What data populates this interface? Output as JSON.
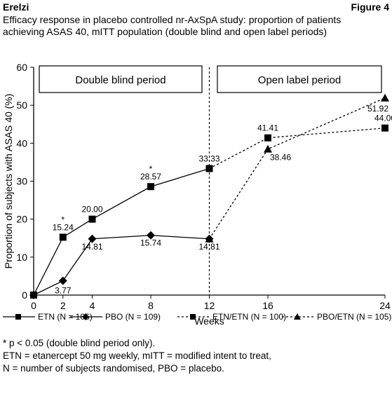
{
  "header": {
    "product": "Erelzi",
    "figure_label": "Figure 4",
    "subtitle_line1": "Efficacy response in placebo controlled nr-AxSpA study: proportion of patients",
    "subtitle_line2": "achieving ASAS 40, mITT population (double blind and open label periods)"
  },
  "chart_data": {
    "type": "line",
    "xlabel": "Weeks",
    "ylabel": "Proportion of subjects with ASAS 40 (%)",
    "ylim": [
      0,
      60
    ],
    "yticks": [
      0,
      10,
      20,
      30,
      40,
      50,
      60
    ],
    "xticks": [
      0,
      2,
      4,
      8,
      12,
      16,
      24
    ],
    "xtick_labels": [
      "0",
      "2",
      "4",
      "8",
      "12",
      "16",
      "24"
    ],
    "period_divider_week": 12,
    "period_labels": [
      "Double blind period",
      "Open label period"
    ],
    "series": [
      {
        "name": "ETN (N = 106)",
        "marker": "square",
        "dash": "solid",
        "x": [
          0,
          2,
          4,
          8,
          12
        ],
        "values": [
          0,
          15.24,
          20.0,
          28.57,
          33.33
        ],
        "labels": [
          "",
          "15.24",
          "20.00",
          "28.57",
          "33.33"
        ],
        "significance": [
          "",
          "*",
          "",
          "*",
          ""
        ]
      },
      {
        "name": "PBO (N = 109)",
        "marker": "diamond",
        "dash": "solid",
        "x": [
          0,
          2,
          4,
          8,
          12
        ],
        "values": [
          0,
          3.77,
          14.81,
          15.74,
          14.81
        ],
        "labels": [
          "",
          "3.77",
          "14.81",
          "15.74",
          "14.81"
        ]
      },
      {
        "name": "ETN/ETN (N = 100)",
        "marker": "square",
        "dash": "dashed",
        "x": [
          12,
          16,
          24
        ],
        "values": [
          33.33,
          41.41,
          44.0
        ],
        "labels": [
          "",
          "41.41",
          "44.00"
        ]
      },
      {
        "name": "PBO/ETN (N = 105)",
        "marker": "triangle",
        "dash": "dashed",
        "x": [
          12,
          16,
          24
        ],
        "values": [
          14.81,
          38.46,
          51.92
        ],
        "labels": [
          "",
          "38.46",
          "51.92"
        ]
      }
    ]
  },
  "footnotes": {
    "line1": "* p < 0.05 (double blind period only).",
    "line2": "ETN = etanercept 50 mg weekly, mITT = modified intent to treat,",
    "line3": "N = number of subjects randomised, PBO = placebo."
  }
}
